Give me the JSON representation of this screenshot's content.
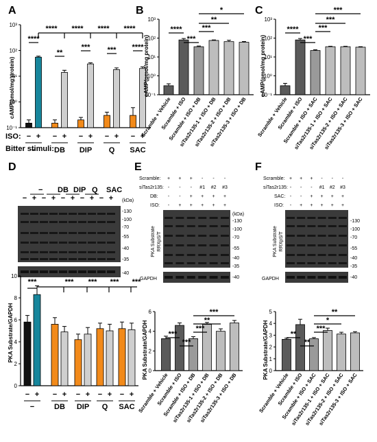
{
  "colors": {
    "dark": "#111111",
    "teal": "#17869c",
    "orange": "#f28a1a",
    "lightgray": "#cfcfcf",
    "gray1": "#5a5a5a",
    "gray2": "#9a9a9a",
    "gray3": "#bdbdbd"
  },
  "panels": {
    "A": "A",
    "B": "B",
    "C": "C",
    "D": "D",
    "E": "E",
    "F": "F"
  },
  "A": {
    "ylabel": "cAMP(pmol/mg protein)",
    "iso_label": "ISO:",
    "bitter_label": "Bitter stimuli:",
    "signs": [
      "−",
      "+",
      "−",
      "+",
      "−",
      "+",
      "−",
      "+",
      "−",
      "+"
    ],
    "groups": [
      "−",
      "DB",
      "DIP",
      "Q",
      "SAC"
    ],
    "ticks": [
      "10⁻¹",
      "10⁰",
      "10¹",
      "10²",
      "10³"
    ],
    "stars_pair": [
      "****",
      "**",
      "***",
      "***",
      "****"
    ],
    "stars_top": [
      "****",
      "****",
      "****",
      "****"
    ]
  },
  "B": {
    "ylabel": "cAMP(pmol/mg protein)",
    "categories": [
      "Scramble + Vehicle",
      "Scramble + ISO",
      "Scramble + ISO + DB",
      "siTas2r135-1 + ISO + DB",
      "siTas2r135-2 + ISO + DB",
      "siTas2r135-3 + ISO + DB"
    ],
    "stars": [
      "****",
      "***",
      "***",
      "**",
      "*"
    ]
  },
  "C": {
    "ylabel": "cAMP(pmol/mg protein)",
    "categories": [
      "Scramble + Vehicle",
      "Scramble + ISO",
      "Scramble + ISO + SAC",
      "siTas2r135-1 + ISO + SAC",
      "siTas2r135-2 + ISO + SAC",
      "siTas2r135-3 + ISO + SAC"
    ],
    "stars": [
      "****",
      "***",
      "***",
      "***",
      "***"
    ]
  },
  "D": {
    "groups": [
      "−",
      "DB",
      "DIP",
      "Q",
      "SAC"
    ],
    "signs": [
      "−",
      "+",
      "−",
      "+",
      "−",
      "+",
      "−",
      "+",
      "−",
      "+"
    ],
    "kda": "(kDa)",
    "markers": [
      "-130",
      "-100",
      "-70",
      "-55",
      "-40",
      "-35"
    ],
    "gapdh_marker": "-40",
    "ylabel": "PKA Substrate/GAPDH",
    "stars": [
      "***",
      "***",
      "***",
      "***",
      "***"
    ]
  },
  "E": {
    "rows": {
      "scramble": "Scramble:",
      "sitas": "siTas2r135:",
      "stim": "DB:",
      "iso": "ISO:"
    },
    "scramble_signs": [
      "+",
      "+",
      "+",
      "-",
      "-",
      "-"
    ],
    "sitas_signs": [
      "-",
      "-",
      "-",
      "#1",
      "#2",
      "#3"
    ],
    "stim_signs": [
      "-",
      "-",
      "+",
      "+",
      "+",
      "+"
    ],
    "iso_signs": [
      "-",
      "+",
      "+",
      "+",
      "+",
      "+"
    ],
    "kda": "(kDa)",
    "markers": [
      "-130",
      "-100",
      "-70",
      "-55",
      "-40",
      "-35"
    ],
    "gapdh_marker": "-40",
    "blot_label1": "PKA Substrate",
    "blot_label2": "RRXpS/T",
    "gapdh": "GAPDH",
    "ylabel": "PKA Substrate/GAPDH",
    "categories": [
      "Scramble + Vehicle",
      "Scramble + ISO",
      "Scramble + ISO + DB",
      "siTas2r135-1 + ISO + DB",
      "siTas2r135-2 + ISO + DB",
      "siTas2r135-3 + ISO + DB"
    ],
    "stars": [
      "***",
      "***",
      "***",
      "**",
      "***"
    ]
  },
  "F": {
    "rows": {
      "scramble": "Scramble:",
      "sitas": "siTas2r135:",
      "stim": "SAC:",
      "iso": "ISO:"
    },
    "scramble_signs": [
      "+",
      "+",
      "+",
      "-",
      "-",
      "-"
    ],
    "sitas_signs": [
      "-",
      "-",
      "-",
      "#1",
      "#2",
      "#3"
    ],
    "stim_signs": [
      "-",
      "-",
      "+",
      "+",
      "+",
      "+"
    ],
    "iso_signs": [
      "-",
      "+",
      "+",
      "+",
      "+",
      "+"
    ],
    "markers": [
      "-130",
      "-100",
      "-70",
      "-55",
      "-40",
      "-35"
    ],
    "gapdh_marker": "-40",
    "blot_label1": "PKA Substrate",
    "blot_label2": "RRXpS/T",
    "gapdh": "GAPDH",
    "ylabel": "PKA Substrate/GAPDH",
    "categories": [
      "Scramble + Vehicle",
      "Scramble + ISO",
      "Scramble + ISO + SAC",
      "siTas2r135-1 + ISO + SAC",
      "siTas2r135-2 + ISO + SAC",
      "siTas2r135-3 + ISO + SAC"
    ],
    "stars": [
      "**",
      "**",
      "***",
      "*",
      "**"
    ]
  },
  "chart_data": [
    {
      "panel": "A",
      "type": "bar",
      "scale": "log",
      "ylim": [
        0.1,
        1000
      ],
      "ylabel": "cAMP(pmol/mg protein)",
      "categories": [
        "−/−",
        "−/+",
        "DB/−",
        "DB/+",
        "DIP/−",
        "DIP/+",
        "Q/−",
        "Q/+",
        "SAC/−",
        "SAC/+"
      ],
      "values": [
        0.15,
        55,
        0.15,
        14,
        0.2,
        30,
        0.3,
        18,
        0.3,
        20
      ],
      "errors": [
        0.05,
        5,
        0.05,
        3,
        0.05,
        3,
        0.1,
        3,
        0.3,
        3
      ]
    },
    {
      "panel": "B",
      "type": "bar",
      "scale": "log",
      "ylim": [
        0.1,
        1000
      ],
      "ylabel": "cAMP(pmol/mg protein)",
      "categories": [
        "Scramble + Vehicle",
        "Scramble + ISO",
        "Scramble + ISO + DB",
        "siTas2r135-1 + ISO + DB",
        "siTas2r135-2 + ISO + DB",
        "siTas2r135-3 + ISO + DB"
      ],
      "values": [
        0.3,
        80,
        35,
        75,
        65,
        60
      ],
      "errors": [
        0.08,
        15,
        3,
        5,
        12,
        6
      ]
    },
    {
      "panel": "C",
      "type": "bar",
      "scale": "log",
      "ylim": [
        0.1,
        1000
      ],
      "ylabel": "cAMP(pmol/mg protein)",
      "categories": [
        "Scramble + Vehicle",
        "Scramble + ISO",
        "Scramble + ISO + SAC",
        "siTas2r135-1 + ISO + SAC",
        "siTas2r135-2 + ISO + SAC",
        "siTas2r135-3 + ISO + SAC"
      ],
      "values": [
        0.3,
        80,
        22,
        35,
        35,
        33
      ],
      "errors": [
        0.1,
        15,
        2,
        2,
        2,
        2
      ]
    },
    {
      "panel": "D",
      "type": "bar",
      "ylim": [
        0,
        10
      ],
      "ylabel": "PKA Substrate/GAPDH",
      "categories": [
        "−/−",
        "−/+",
        "DB/−",
        "DB/+",
        "DIP/−",
        "DIP/+",
        "Q/−",
        "Q/+",
        "SAC/−",
        "SAC/+"
      ],
      "values": [
        5.8,
        8.3,
        5.6,
        4.9,
        4.2,
        4.7,
        5.2,
        5.0,
        5.2,
        5.1
      ],
      "errors": [
        0.6,
        0.8,
        0.6,
        0.5,
        0.5,
        0.6,
        0.5,
        0.6,
        0.6,
        0.6
      ]
    },
    {
      "panel": "E",
      "type": "bar",
      "ylim": [
        0,
        6
      ],
      "ylabel": "PKA Substrate/GAPDH",
      "categories": [
        "Scramble + Vehicle",
        "Scramble + ISO",
        "Scramble + ISO + DB",
        "siTas2r135-1 + ISO + DB",
        "siTas2r135-2 + ISO + DB",
        "siTas2r135-3 + ISO + DB"
      ],
      "values": [
        3.25,
        4.6,
        3.25,
        4.7,
        4.0,
        4.85
      ],
      "errors": [
        0.25,
        0.25,
        0.2,
        0.2,
        0.25,
        0.25
      ]
    },
    {
      "panel": "F",
      "type": "bar",
      "ylim": [
        0,
        5
      ],
      "ylabel": "PKA Substrate/GAPDH",
      "categories": [
        "Scramble + Vehicle",
        "Scramble + ISO",
        "Scramble + ISO + SAC",
        "siTas2r135-1 + ISO + SAC",
        "siTas2r135-2 + ISO + SAC",
        "siTas2r135-3 + ISO + SAC"
      ],
      "values": [
        2.65,
        3.9,
        2.7,
        3.4,
        3.1,
        3.2
      ],
      "errors": [
        0.1,
        0.45,
        0.1,
        0.2,
        0.15,
        0.1
      ]
    }
  ]
}
